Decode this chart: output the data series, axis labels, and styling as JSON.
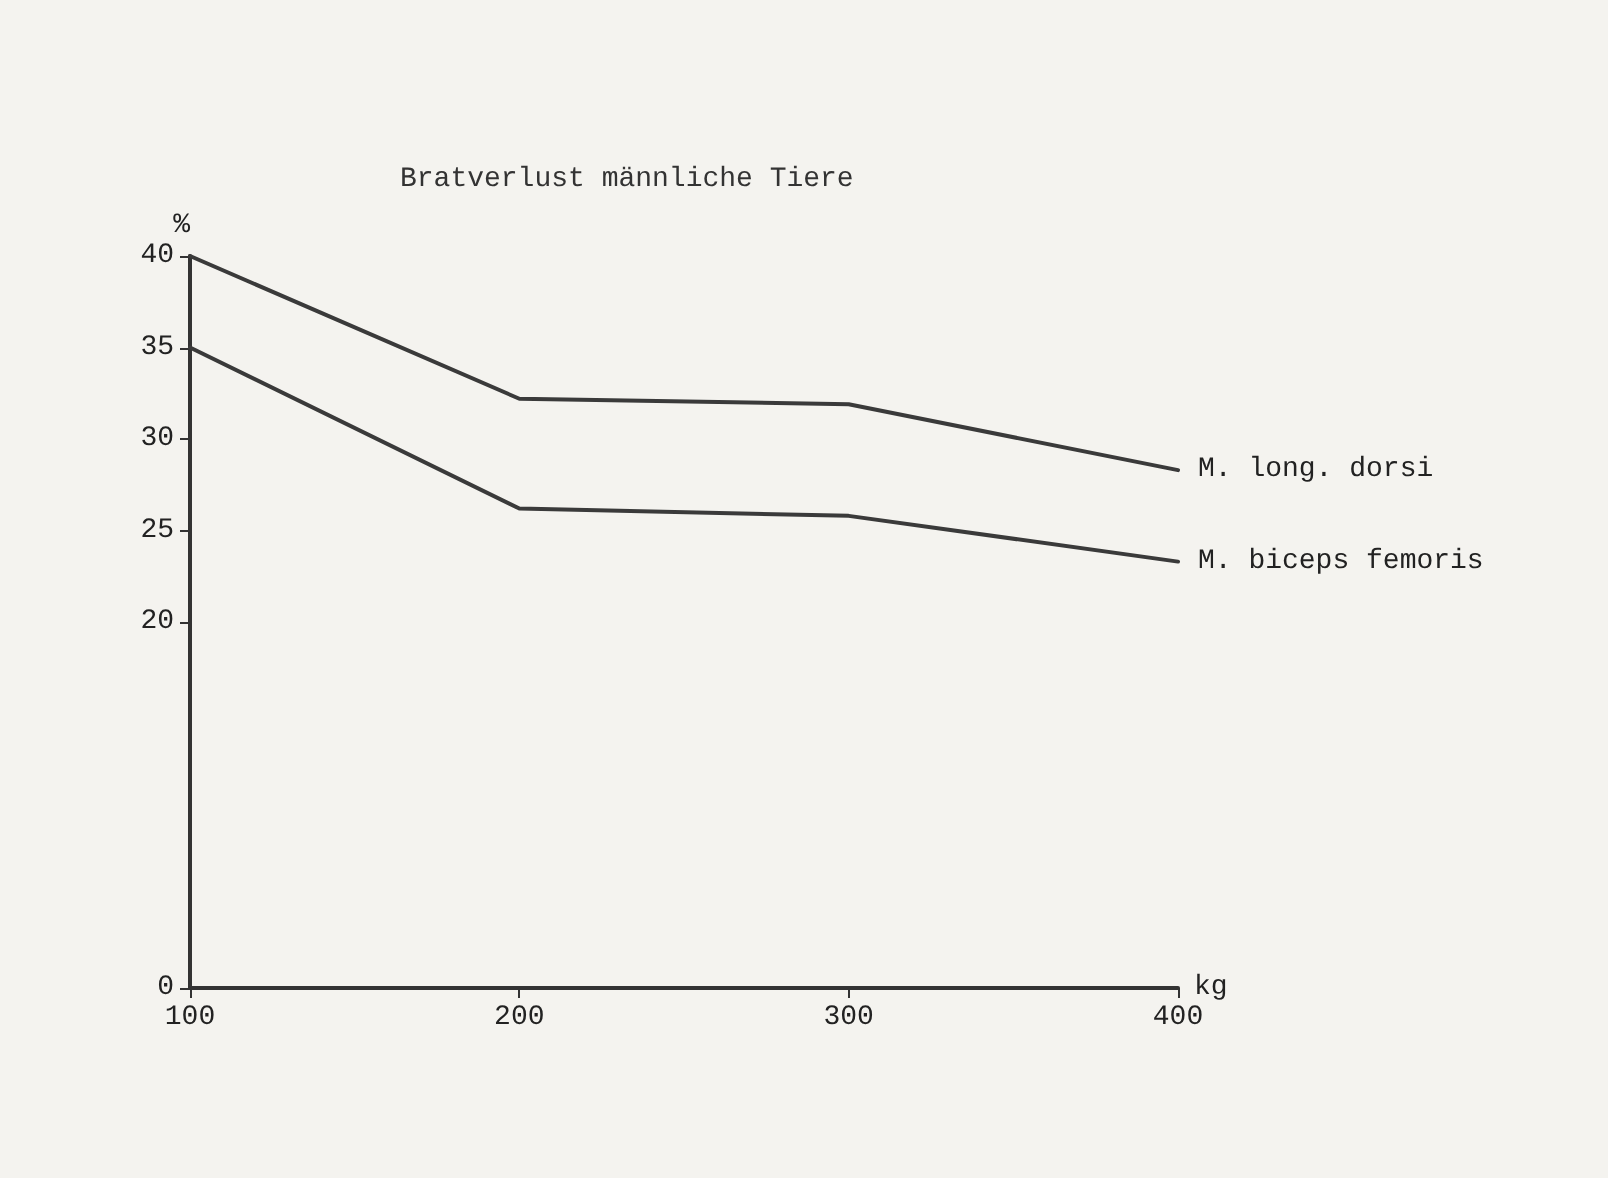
{
  "chart_data": {
    "type": "line",
    "title": "Bratverlust männliche Tiere",
    "xlabel": "kg",
    "ylabel": "%",
    "x": [
      100,
      200,
      300,
      400
    ],
    "series": [
      {
        "name": "M. long. dorsi",
        "color": "#3a3a3a",
        "values": [
          40,
          32.2,
          31.9,
          28.3
        ]
      },
      {
        "name": "M. biceps femoris",
        "color": "#3a3a3a",
        "values": [
          35,
          26.2,
          25.8,
          23.3
        ]
      }
    ],
    "xlim": [
      100,
      400
    ],
    "xticks": [
      100,
      200,
      300,
      400
    ],
    "ylim": [
      0,
      40
    ],
    "yticks": [
      0,
      20,
      25,
      30,
      35,
      40
    ],
    "grid": false,
    "legend": false,
    "marker": "none",
    "line_style": "solid"
  }
}
